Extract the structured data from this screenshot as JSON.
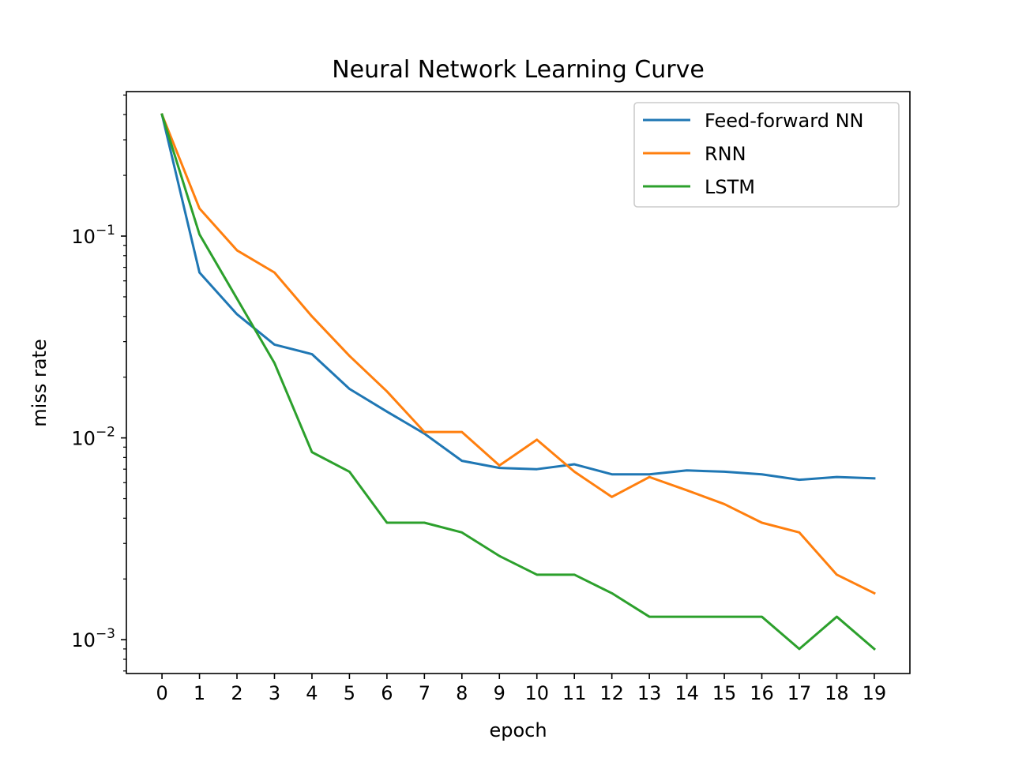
{
  "chart_data": {
    "type": "line",
    "title": "Neural Network Learning Curve",
    "xlabel": "epoch",
    "ylabel": "miss rate",
    "yscale": "log",
    "ylim": [
      0.00068,
      0.52
    ],
    "xlim": [
      -0.95,
      19.95
    ],
    "grid": false,
    "legend_position": "top-right",
    "x": [
      0,
      1,
      2,
      3,
      4,
      5,
      6,
      7,
      8,
      9,
      10,
      11,
      12,
      13,
      14,
      15,
      16,
      17,
      18,
      19
    ],
    "xticks": [
      "0",
      "1",
      "2",
      "3",
      "4",
      "5",
      "6",
      "7",
      "8",
      "9",
      "10",
      "11",
      "12",
      "13",
      "14",
      "15",
      "16",
      "17",
      "18",
      "19"
    ],
    "yticks": [
      {
        "value": 0.1,
        "base": "10",
        "exp": "−1"
      },
      {
        "value": 0.01,
        "base": "10",
        "exp": "−2"
      },
      {
        "value": 0.001,
        "base": "10",
        "exp": "−3"
      }
    ],
    "series": [
      {
        "name": "Feed-forward NN",
        "color": "#1f77b4",
        "values": [
          0.4,
          0.066,
          0.041,
          0.029,
          0.026,
          0.0175,
          0.0135,
          0.0105,
          0.0077,
          0.0071,
          0.007,
          0.0074,
          0.0066,
          0.0066,
          0.0069,
          0.0068,
          0.0066,
          0.0062,
          0.0064,
          0.0063
        ]
      },
      {
        "name": "RNN",
        "color": "#ff7f0e",
        "values": [
          0.4,
          0.137,
          0.085,
          0.066,
          0.04,
          0.0255,
          0.017,
          0.0107,
          0.0107,
          0.0073,
          0.0098,
          0.0068,
          0.0051,
          0.0064,
          0.0055,
          0.0047,
          0.0038,
          0.0034,
          0.0021,
          0.0017
        ]
      },
      {
        "name": "LSTM",
        "color": "#2ca02c",
        "values": [
          0.4,
          0.102,
          0.049,
          0.0235,
          0.0085,
          0.0068,
          0.0038,
          0.0038,
          0.0034,
          0.0026,
          0.0021,
          0.0021,
          0.0017,
          0.0013,
          0.0013,
          0.0013,
          0.0013,
          0.0009,
          0.0013,
          0.0009
        ]
      }
    ]
  }
}
